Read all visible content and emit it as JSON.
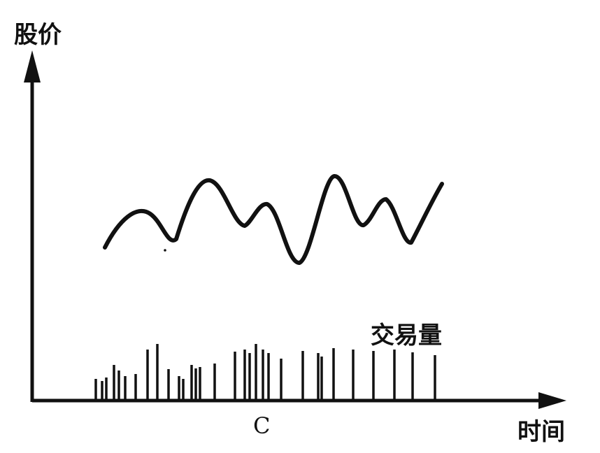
{
  "labels": {
    "y_axis": "股价",
    "x_axis": "时间",
    "volume": "交易量",
    "point": "C"
  },
  "colors": {
    "ink": "#111111",
    "background": "#ffffff"
  }
}
